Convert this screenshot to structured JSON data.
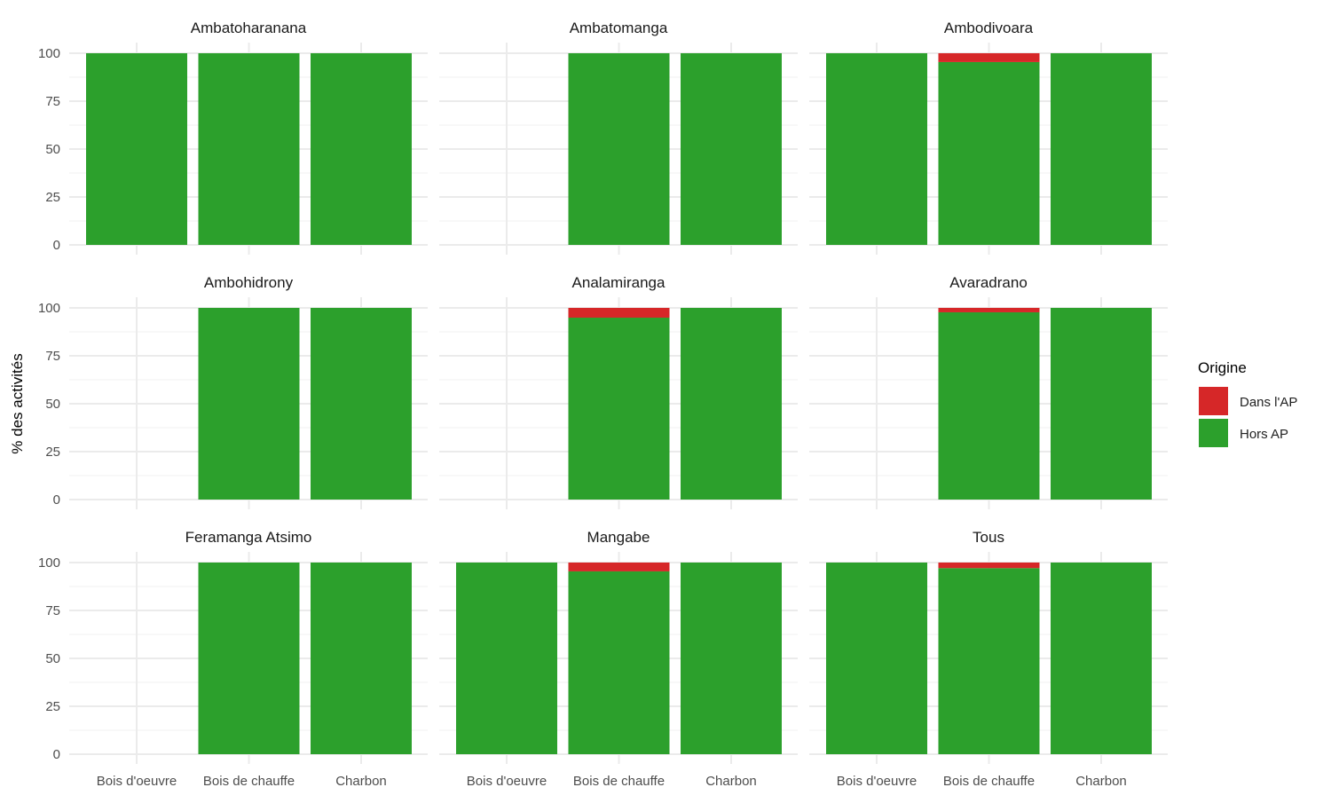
{
  "chart_data": {
    "type": "bar",
    "stacked": true,
    "ylabel": "% des activités",
    "xlabel": "",
    "ylim": [
      0,
      100
    ],
    "yticks": [
      0,
      25,
      50,
      75,
      100
    ],
    "grid": true,
    "categories": [
      "Bois d'oeuvre",
      "Bois de chauffe",
      "Charbon"
    ],
    "legend": {
      "title": "Origine",
      "position": "right",
      "entries": [
        {
          "name": "Dans l'AP",
          "color": "#d62728"
        },
        {
          "name": "Hors AP",
          "color": "#2ca02c"
        }
      ]
    },
    "facets": [
      {
        "title": "Ambatoharanana",
        "series": {
          "Dans l'AP": [
            0,
            0,
            0
          ],
          "Hors AP": [
            100,
            100,
            100
          ]
        }
      },
      {
        "title": "Ambatomanga",
        "series": {
          "Dans l'AP": [
            null,
            0,
            0
          ],
          "Hors AP": [
            null,
            100,
            100
          ]
        }
      },
      {
        "title": "Ambodivoara",
        "series": {
          "Dans l'AP": [
            0,
            4.6,
            0
          ],
          "Hors AP": [
            100,
            95.4,
            100
          ]
        }
      },
      {
        "title": "Ambohidrony",
        "series": {
          "Dans l'AP": [
            null,
            0,
            0
          ],
          "Hors AP": [
            null,
            100,
            100
          ]
        }
      },
      {
        "title": "Analamiranga",
        "series": {
          "Dans l'AP": [
            null,
            5.1,
            0
          ],
          "Hors AP": [
            null,
            94.9,
            100
          ]
        }
      },
      {
        "title": "Avaradrano",
        "series": {
          "Dans l'AP": [
            null,
            2.3,
            0
          ],
          "Hors AP": [
            null,
            97.7,
            100
          ]
        }
      },
      {
        "title": "Feramanga Atsimo",
        "series": {
          "Dans l'AP": [
            null,
            0,
            0
          ],
          "Hors AP": [
            null,
            100,
            100
          ]
        }
      },
      {
        "title": "Mangabe",
        "series": {
          "Dans l'AP": [
            0,
            4.6,
            0
          ],
          "Hors AP": [
            100,
            95.4,
            100
          ]
        }
      },
      {
        "title": "Tous",
        "series": {
          "Dans l'AP": [
            0,
            2.9,
            0
          ],
          "Hors AP": [
            100,
            97.1,
            100
          ]
        }
      }
    ]
  }
}
